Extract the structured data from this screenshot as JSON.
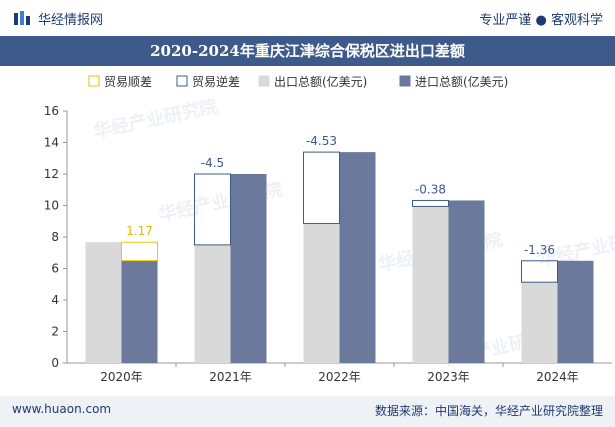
{
  "header": {
    "brand": "华经情报网",
    "slogan": "专业严谨 ● 客观科学",
    "title": "2020-2024年重庆江津综合保税区进出口差额"
  },
  "footer": {
    "website": "www.huaon.com",
    "source": "数据来源：中国海关，华经产业研究院整理"
  },
  "watermark": "华经产业研究院",
  "colors": {
    "export": "#d9d9d9",
    "import": "#6b7a9c",
    "surplus": "#f2c200",
    "deficit": "#3e5a8a",
    "label_surplus": "#e6b800",
    "label_deficit": "#3e5a8a"
  },
  "chart_data": {
    "type": "bar",
    "title": "2020-2024年重庆江津综合保税区进出口差额",
    "categories": [
      "2020年",
      "2021年",
      "2022年",
      "2023年",
      "2024年"
    ],
    "series": [
      {
        "name": "贸易顺差",
        "kind": "surplus"
      },
      {
        "name": "贸易逆差",
        "kind": "deficit"
      },
      {
        "name": "出口总额(亿美元)",
        "values": [
          7.67,
          7.5,
          8.86,
          9.94,
          5.13
        ]
      },
      {
        "name": "进口总额(亿美元)",
        "values": [
          6.5,
          12.0,
          13.39,
          10.32,
          6.49
        ]
      }
    ],
    "balance": [
      1.17,
      -4.5,
      -4.53,
      -0.38,
      -1.36
    ],
    "balance_labels": [
      "1.17",
      "-4.5",
      "-4.53",
      "-0.38",
      "-1.36"
    ],
    "ylim": [
      0,
      16
    ],
    "yticks": [
      0,
      2,
      4,
      6,
      8,
      10,
      12,
      14,
      16
    ],
    "legend_position": "top",
    "grid": false
  }
}
